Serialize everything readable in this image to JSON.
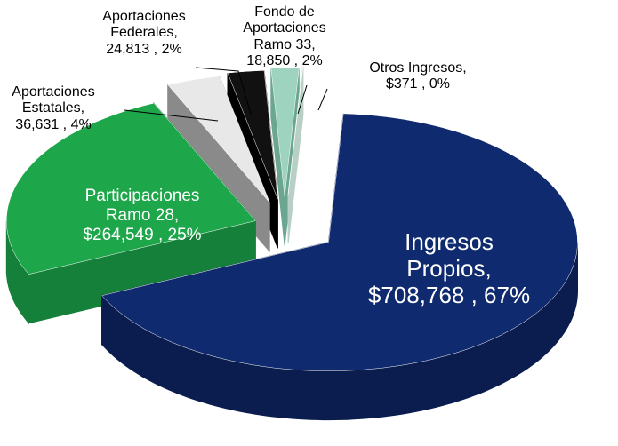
{
  "chart_data": {
    "type": "pie",
    "categories": [
      "Ingresos Propios,",
      "Participaciones Ramo 28,",
      "Aportaciones Estatales,",
      "Aportaciones Federales,",
      "Fondo de Aportaciones Ramo 33,",
      "Otros Ingresos,"
    ],
    "values": [
      708768,
      264549,
      36631,
      24813,
      18850,
      371
    ],
    "value_labels": [
      "$708,768 , 67%",
      "$264,549 , 25%",
      "36,631 , 4%",
      "24,813 , 2%",
      "18,850 , 2%",
      "$371 , 0%"
    ],
    "colors": [
      "#0f2a6e",
      "#1ea64b",
      "#e8e8e8",
      "#111111",
      "#9ed4bf",
      "#e3f0ea"
    ],
    "side_colors": [
      "#0a1d4e",
      "#15803a",
      "#8a8a8a",
      "#000000",
      "#6aa690",
      "#b8cfc6"
    ]
  }
}
